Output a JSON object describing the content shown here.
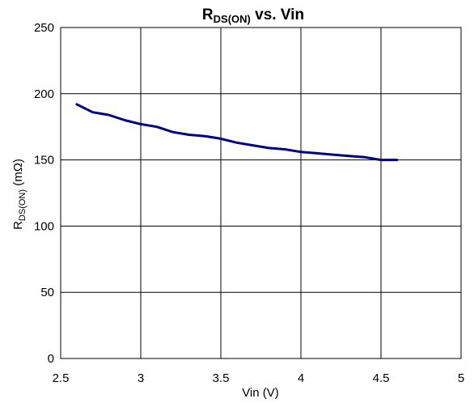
{
  "chart_data": {
    "type": "line",
    "title": {
      "main": "R",
      "sub": "DS(ON)",
      "rest": " vs. Vin"
    },
    "xlabel": "Vin (V)",
    "ylabel": {
      "main": "R",
      "sub": "DS(ON)",
      "rest": " (mΩ)"
    },
    "xlim": [
      2.5,
      5
    ],
    "ylim": [
      0,
      250
    ],
    "xticks": [
      2.5,
      3,
      3.5,
      4,
      4.5,
      5
    ],
    "xtick_labels": [
      "2.5",
      "3",
      "3.5",
      "4",
      "4.5",
      "5"
    ],
    "yticks": [
      0,
      50,
      100,
      150,
      200,
      250
    ],
    "ytick_labels": [
      "0",
      "50",
      "100",
      "150",
      "200",
      "250"
    ],
    "grid": true,
    "line_color": "#00007f",
    "series": [
      {
        "x": [
          2.6,
          2.7,
          2.8,
          2.9,
          3.0,
          3.1,
          3.2,
          3.3,
          3.4,
          3.5,
          3.6,
          3.7,
          3.8,
          3.9,
          4.0,
          4.1,
          4.2,
          4.3,
          4.4,
          4.5,
          4.6
        ],
        "y": [
          192,
          186,
          184,
          180,
          177,
          175,
          171,
          169,
          168,
          166,
          163,
          161,
          159,
          158,
          156,
          155,
          154,
          153,
          152,
          150,
          150
        ]
      }
    ]
  }
}
